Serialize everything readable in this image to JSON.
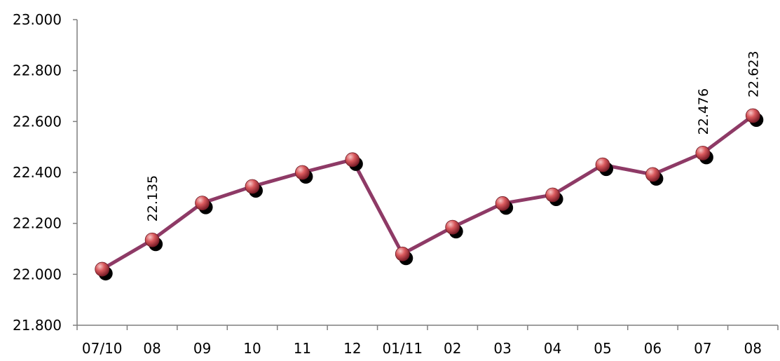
{
  "chart_data": {
    "type": "line",
    "categories": [
      "07/10",
      "08",
      "09",
      "10",
      "11",
      "12",
      "01/11",
      "02",
      "03",
      "04",
      "05",
      "06",
      "07",
      "08"
    ],
    "series": [
      {
        "values": [
          22020,
          22135,
          22280,
          22345,
          22400,
          22450,
          22080,
          22185,
          22278,
          22312,
          22430,
          22392,
          22476,
          22623
        ],
        "color": "#8e3a66",
        "marker_color": "#c0504d"
      }
    ],
    "data_labels": [
      {
        "index": 1,
        "text": "22.135"
      },
      {
        "index": 12,
        "text": "22.476"
      },
      {
        "index": 13,
        "text": "22.623"
      }
    ],
    "ylim": [
      21800,
      23000
    ],
    "yticks": [
      21800,
      22000,
      22200,
      22400,
      22600,
      22800,
      23000
    ],
    "ytick_labels": [
      "21.800",
      "22.000",
      "22.200",
      "22.400",
      "22.600",
      "22.800",
      "23.000"
    ],
    "grid": false,
    "legend": "none",
    "title": "",
    "xlabel": "",
    "ylabel": ""
  }
}
